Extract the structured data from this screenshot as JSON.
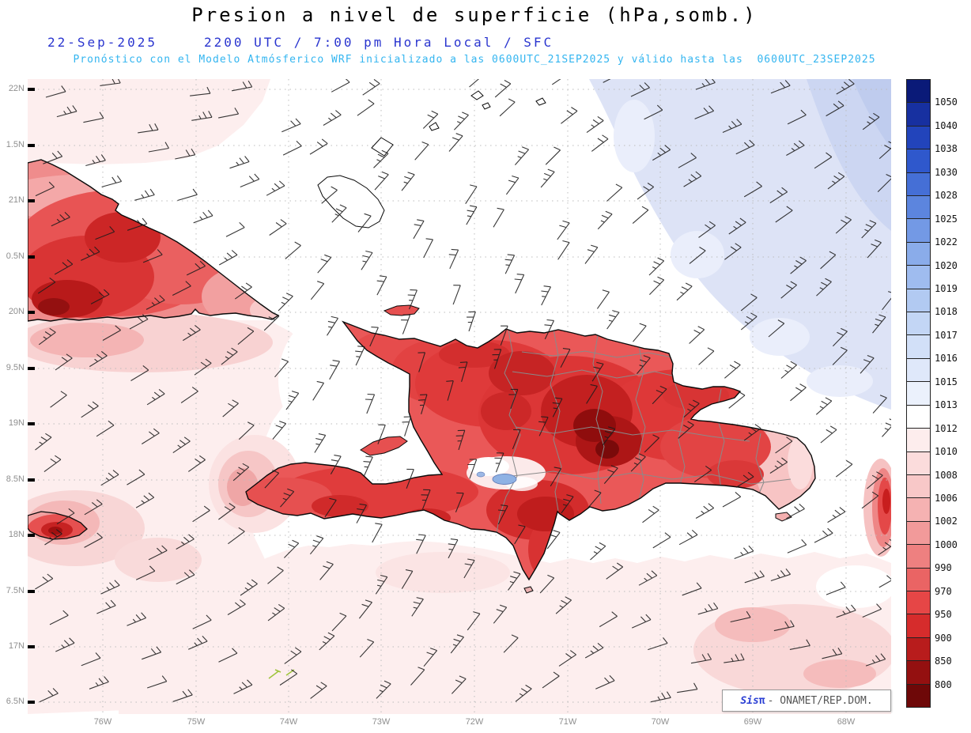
{
  "header": {
    "title": "Presion a nivel de superficie (hPa,somb.)",
    "date": "22-Sep-2025",
    "time_line": "2200 UTC / 7:00 pm Hora Local / SFC",
    "forecast_line": "Pronóstico con el Modelo Atmósferico WRF inicializado a las 0600UTC_21SEP2025 y válido hasta las  0600UTC_23SEP2025"
  },
  "map": {
    "lat_labels": [
      "22N",
      "1.5N",
      "21N",
      "0.5N",
      "20N",
      "9.5N",
      "19N",
      "8.5N",
      "18N",
      "7.5N",
      "17N",
      "6.5N"
    ],
    "lon_labels": [
      "76W",
      "75W",
      "74W",
      "73W",
      "72W",
      "71W",
      "70W",
      "69W",
      "68W"
    ]
  },
  "colorbar": {
    "levels": [
      "1050",
      "1040",
      "1038",
      "1030",
      "1028",
      "1025",
      "1022",
      "1020",
      "1019",
      "1018",
      "1017",
      "1016",
      "1015",
      "1013",
      "1012",
      "1010",
      "1008",
      "1006",
      "1002",
      "1000",
      "990",
      "970",
      "950",
      "900",
      "850",
      "800"
    ],
    "colors": [
      "#0a1a78",
      "#1730a0",
      "#2244bb",
      "#2f58cc",
      "#456fd6",
      "#5c85de",
      "#7399e5",
      "#8aacea",
      "#9fbcef",
      "#b2caf2",
      "#c3d6f5",
      "#d2e0f8",
      "#dfe8fa",
      "#ebf1fc",
      "#ffffff",
      "#fdeded",
      "#fbdcdc",
      "#f8c8c8",
      "#f5b2b2",
      "#f29a9a",
      "#ee8080",
      "#ea6464",
      "#e64646",
      "#d62c2c",
      "#b81c1c",
      "#941010",
      "#6e0808"
    ]
  },
  "logo": {
    "brand": "Sis",
    "pi": "π",
    "org": "- ONAMET/REP.DOM."
  }
}
